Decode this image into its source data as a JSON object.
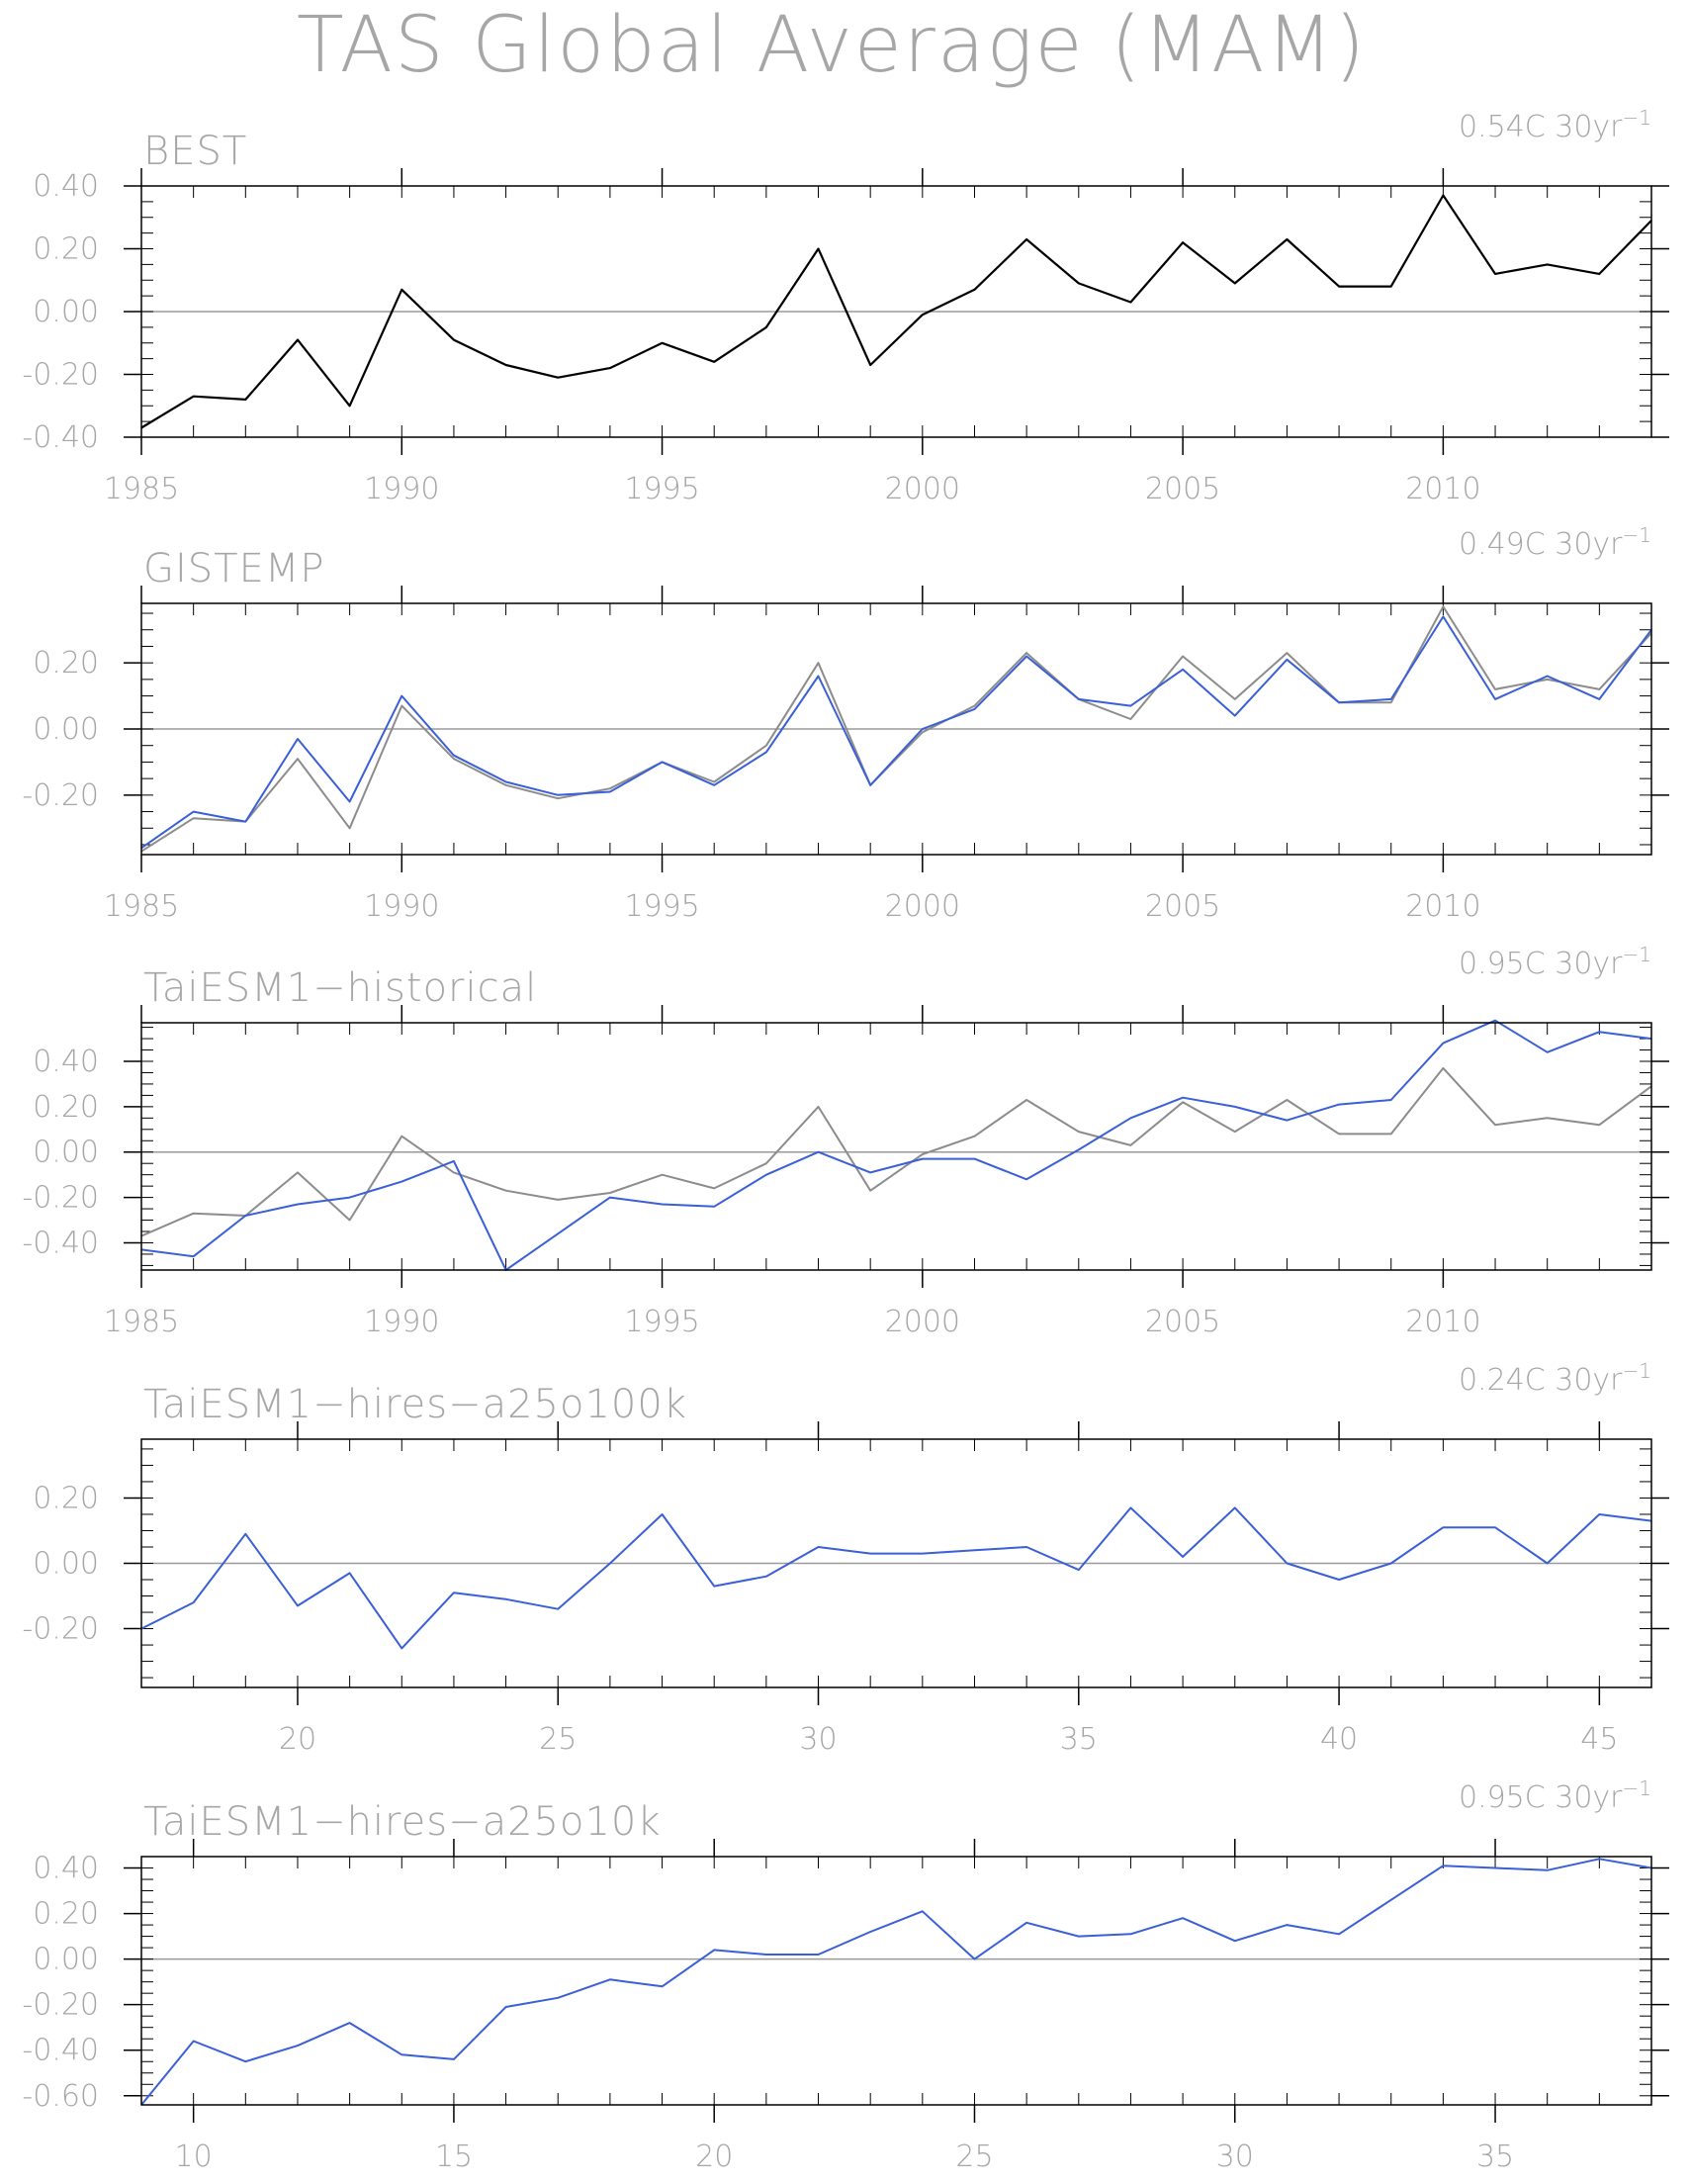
{
  "title": "TAS Global Average (MAM)",
  "colors": {
    "observation": "#000000",
    "reference": "#8c8c8c",
    "model": "#3a5fd6",
    "axis": "#000000",
    "zero_line": "#9a9a9a",
    "text": "#a6a6a6"
  },
  "panels": [
    {
      "title": "BEST",
      "trend": "0.54C",
      "trend_unit": "30yr",
      "trend_exp": "−1"
    },
    {
      "title": "GISTEMP",
      "trend": "0.49C",
      "trend_unit": "30yr",
      "trend_exp": "−1"
    },
    {
      "title": "TaiESM1−historical",
      "trend": "0.95C",
      "trend_unit": "30yr",
      "trend_exp": "−1"
    },
    {
      "title": "TaiESM1−hires−a25o100k",
      "trend": "0.24C",
      "trend_unit": "30yr",
      "trend_exp": "−1"
    },
    {
      "title": "TaiESM1−hires−a25o10k",
      "trend": "0.95C",
      "trend_unit": "30yr",
      "trend_exp": "−1"
    }
  ],
  "chart_data": [
    {
      "type": "line",
      "title": "BEST",
      "annotation": "0.54C 30yr⁻¹",
      "xlim": [
        1985,
        2014
      ],
      "ylim": [
        -0.4,
        0.4
      ],
      "yticks": [
        -0.4,
        -0.2,
        0.0,
        0.2,
        0.4
      ],
      "ytick_labels": [
        "-0.40",
        "-0.20",
        "0.00",
        "0.20",
        "0.40"
      ],
      "xticks": [
        1985,
        1990,
        1995,
        2000,
        2005,
        2010
      ],
      "xtick_labels": [
        "1985",
        "1990",
        "1995",
        "2000",
        "2005",
        "2010"
      ],
      "x": [
        1985,
        1986,
        1987,
        1988,
        1989,
        1990,
        1991,
        1992,
        1993,
        1994,
        1995,
        1996,
        1997,
        1998,
        1999,
        2000,
        2001,
        2002,
        2003,
        2004,
        2005,
        2006,
        2007,
        2008,
        2009,
        2010,
        2011,
        2012,
        2013,
        2014
      ],
      "series": [
        {
          "role": "observation",
          "values": [
            -0.37,
            -0.27,
            -0.28,
            -0.09,
            -0.3,
            0.07,
            -0.09,
            -0.17,
            -0.21,
            -0.18,
            -0.1,
            -0.16,
            -0.05,
            0.2,
            -0.17,
            -0.01,
            0.07,
            0.23,
            0.09,
            0.03,
            0.22,
            0.09,
            0.23,
            0.08,
            0.08,
            0.37,
            0.12,
            0.15,
            0.12,
            0.29
          ]
        }
      ]
    },
    {
      "type": "line",
      "title": "GISTEMP",
      "annotation": "0.49C 30yr⁻¹",
      "xlim": [
        1985,
        2014
      ],
      "ylim": [
        -0.38,
        0.38
      ],
      "yticks": [
        -0.2,
        0.0,
        0.2
      ],
      "ytick_labels": [
        "-0.20",
        "0.00",
        "0.20"
      ],
      "xticks": [
        1985,
        1990,
        1995,
        2000,
        2005,
        2010
      ],
      "xtick_labels": [
        "1985",
        "1990",
        "1995",
        "2000",
        "2005",
        "2010"
      ],
      "x": [
        1985,
        1986,
        1987,
        1988,
        1989,
        1990,
        1991,
        1992,
        1993,
        1994,
        1995,
        1996,
        1997,
        1998,
        1999,
        2000,
        2001,
        2002,
        2003,
        2004,
        2005,
        2006,
        2007,
        2008,
        2009,
        2010,
        2011,
        2012,
        2013,
        2014
      ],
      "series": [
        {
          "role": "reference",
          "values": [
            -0.37,
            -0.27,
            -0.28,
            -0.09,
            -0.3,
            0.07,
            -0.09,
            -0.17,
            -0.21,
            -0.18,
            -0.1,
            -0.16,
            -0.05,
            0.2,
            -0.17,
            -0.01,
            0.07,
            0.23,
            0.09,
            0.03,
            0.22,
            0.09,
            0.23,
            0.08,
            0.08,
            0.37,
            0.12,
            0.15,
            0.12,
            0.29
          ]
        },
        {
          "role": "model",
          "values": [
            -0.36,
            -0.25,
            -0.28,
            -0.03,
            -0.22,
            0.1,
            -0.08,
            -0.16,
            -0.2,
            -0.19,
            -0.1,
            -0.17,
            -0.07,
            0.16,
            -0.17,
            0.0,
            0.06,
            0.22,
            0.09,
            0.07,
            0.18,
            0.04,
            0.21,
            0.08,
            0.09,
            0.34,
            0.09,
            0.16,
            0.09,
            0.3
          ]
        }
      ]
    },
    {
      "type": "line",
      "title": "TaiESM1−historical",
      "annotation": "0.95C 30yr⁻¹",
      "xlim": [
        1985,
        2014
      ],
      "ylim": [
        -0.52,
        0.57
      ],
      "yticks": [
        -0.4,
        -0.2,
        0.0,
        0.2,
        0.4
      ],
      "ytick_labels": [
        "-0.40",
        "-0.20",
        "0.00",
        "0.20",
        "0.40"
      ],
      "xticks": [
        1985,
        1990,
        1995,
        2000,
        2005,
        2010
      ],
      "xtick_labels": [
        "1985",
        "1990",
        "1995",
        "2000",
        "2005",
        "2010"
      ],
      "x": [
        1985,
        1986,
        1987,
        1988,
        1989,
        1990,
        1991,
        1992,
        1993,
        1994,
        1995,
        1996,
        1997,
        1998,
        1999,
        2000,
        2001,
        2002,
        2003,
        2004,
        2005,
        2006,
        2007,
        2008,
        2009,
        2010,
        2011,
        2012,
        2013,
        2014
      ],
      "series": [
        {
          "role": "reference",
          "values": [
            -0.37,
            -0.27,
            -0.28,
            -0.09,
            -0.3,
            0.07,
            -0.09,
            -0.17,
            -0.21,
            -0.18,
            -0.1,
            -0.16,
            -0.05,
            0.2,
            -0.17,
            -0.01,
            0.07,
            0.23,
            0.09,
            0.03,
            0.22,
            0.09,
            0.23,
            0.08,
            0.08,
            0.37,
            0.12,
            0.15,
            0.12,
            0.29
          ]
        },
        {
          "role": "model",
          "values": [
            -0.43,
            -0.46,
            -0.28,
            -0.23,
            -0.2,
            -0.13,
            -0.04,
            -0.52,
            -0.36,
            -0.2,
            -0.23,
            -0.24,
            -0.1,
            0.0,
            -0.09,
            -0.03,
            -0.03,
            -0.12,
            0.01,
            0.15,
            0.24,
            0.2,
            0.14,
            0.21,
            0.23,
            0.48,
            0.58,
            0.44,
            0.53,
            0.5
          ]
        }
      ]
    },
    {
      "type": "line",
      "title": "TaiESM1−hires−a25o100k",
      "annotation": "0.24C 30yr⁻¹",
      "xlim": [
        17,
        46
      ],
      "ylim": [
        -0.38,
        0.38
      ],
      "yticks": [
        -0.2,
        0.0,
        0.2
      ],
      "ytick_labels": [
        "-0.20",
        "0.00",
        "0.20"
      ],
      "xticks": [
        20,
        25,
        30,
        35,
        40,
        45
      ],
      "xtick_labels": [
        "20",
        "25",
        "30",
        "35",
        "40",
        "45"
      ],
      "x": [
        17,
        18,
        19,
        20,
        21,
        22,
        23,
        24,
        25,
        26,
        27,
        28,
        29,
        30,
        31,
        32,
        33,
        34,
        35,
        36,
        37,
        38,
        39,
        40,
        41,
        42,
        43,
        44,
        45,
        46
      ],
      "series": [
        {
          "role": "model",
          "values": [
            -0.2,
            -0.12,
            0.09,
            -0.13,
            -0.03,
            -0.26,
            -0.09,
            -0.11,
            -0.14,
            0.0,
            0.15,
            -0.07,
            -0.04,
            0.05,
            0.03,
            0.03,
            0.04,
            0.05,
            -0.02,
            0.17,
            0.02,
            0.17,
            0.0,
            -0.05,
            0.0,
            0.11,
            0.11,
            0.0,
            0.15,
            0.13
          ]
        }
      ]
    },
    {
      "type": "line",
      "title": "TaiESM1−hires−a25o10k",
      "annotation": "0.95C 30yr⁻¹",
      "xlim": [
        9,
        38
      ],
      "ylim": [
        -0.64,
        0.45
      ],
      "yticks": [
        -0.6,
        -0.4,
        -0.2,
        0.0,
        0.2,
        0.4
      ],
      "ytick_labels": [
        "-0.60",
        "-0.40",
        "-0.20",
        "0.00",
        "0.20",
        "0.40"
      ],
      "xticks": [
        10,
        15,
        20,
        25,
        30,
        35
      ],
      "xtick_labels": [
        "10",
        "15",
        "20",
        "25",
        "30",
        "35"
      ],
      "x": [
        9,
        10,
        11,
        12,
        13,
        14,
        15,
        16,
        17,
        18,
        19,
        20,
        21,
        22,
        23,
        24,
        25,
        26,
        27,
        28,
        29,
        30,
        31,
        32,
        33,
        34,
        35,
        36,
        37,
        38
      ],
      "series": [
        {
          "role": "model",
          "values": [
            -0.64,
            -0.36,
            -0.45,
            -0.38,
            -0.28,
            -0.42,
            -0.44,
            -0.21,
            -0.17,
            -0.09,
            -0.12,
            0.04,
            0.02,
            0.02,
            0.12,
            0.21,
            0.0,
            0.16,
            0.1,
            0.11,
            0.18,
            0.08,
            0.15,
            0.11,
            0.26,
            0.41,
            0.4,
            0.39,
            0.44,
            0.4
          ]
        }
      ]
    }
  ]
}
